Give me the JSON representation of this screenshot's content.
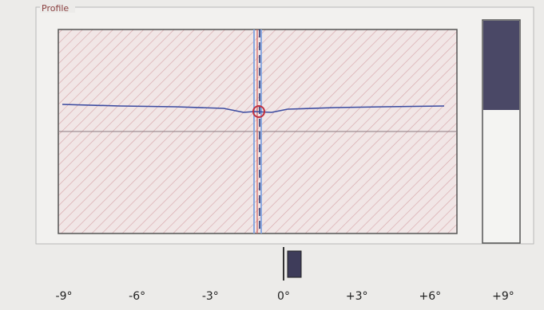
{
  "panel": {
    "title": "Profile"
  },
  "scale": {
    "labels": [
      "-9°",
      "-6°",
      "-3°",
      "0°",
      "+3°",
      "+6°",
      "+9°"
    ]
  }
}
